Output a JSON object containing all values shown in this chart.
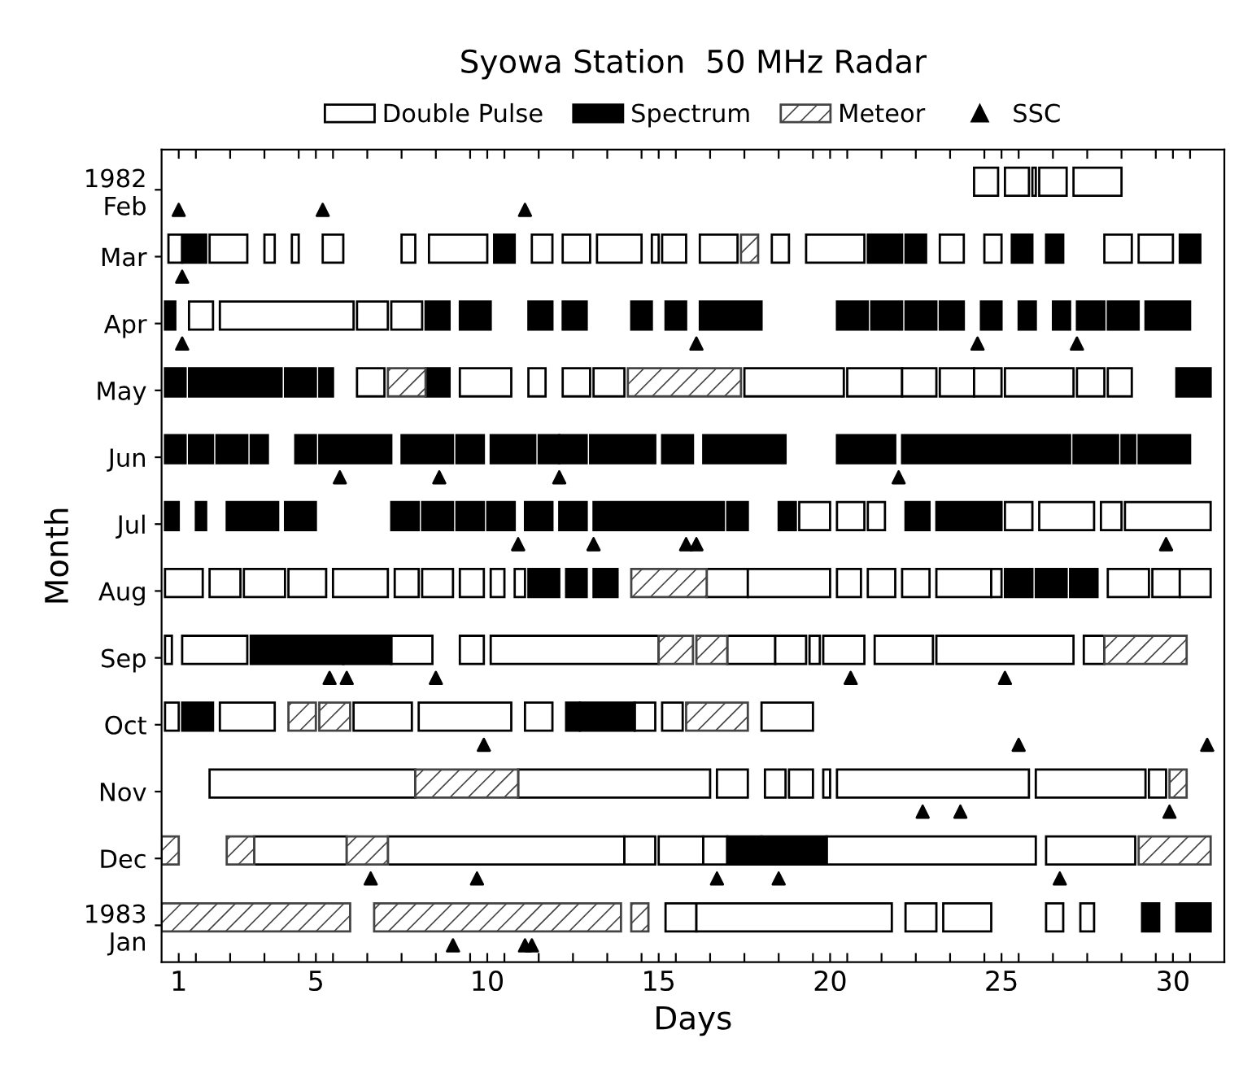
{
  "chart_data": {
    "type": "bar",
    "orientation": "horizontal",
    "title": "Syowa Station  50 MHz Radar",
    "xlabel": "Days",
    "ylabel": "Month",
    "categories": [
      "1982\nFeb",
      "Mar",
      "Apr",
      "May",
      "Jun",
      "Jul",
      "Aug",
      "Sep",
      "Oct",
      "Nov",
      "Dec",
      "1983\nJan"
    ],
    "xlim": [
      0.5,
      31.5
    ],
    "xticks": [
      1,
      5,
      10,
      15,
      20,
      25,
      30,
      {
        "value": 1.5,
        "label": null
      },
      {
        "value": 2.5,
        "label": null
      },
      {
        "value": 3.5,
        "label": null
      },
      {
        "value": 4.5,
        "label": null
      },
      {
        "value": 5.5,
        "label": null
      },
      {
        "value": 6.5,
        "label": null
      },
      {
        "value": 7.5,
        "label": null
      },
      {
        "value": 8.5,
        "label": null
      },
      {
        "value": 9.5,
        "label": null
      },
      {
        "value": 10.5,
        "label": null
      },
      {
        "value": 11.5,
        "label": null
      },
      {
        "value": 12.5,
        "label": null
      },
      {
        "value": 13.5,
        "label": null
      },
      {
        "value": 14.5,
        "label": null
      },
      {
        "value": 15.5,
        "label": null
      },
      {
        "value": 16.5,
        "label": null
      },
      {
        "value": 17.5,
        "label": null
      },
      {
        "value": 18.5,
        "label": null
      },
      {
        "value": 19.5,
        "label": null
      },
      {
        "value": 20.5,
        "label": null
      },
      {
        "value": 21.5,
        "label": null
      },
      {
        "value": 22.5,
        "label": null
      },
      {
        "value": 23.5,
        "label": null
      },
      {
        "value": 24.5,
        "label": null
      },
      {
        "value": 25.5,
        "label": null
      },
      {
        "value": 26.5,
        "label": null
      },
      {
        "value": 27.5,
        "label": null
      },
      {
        "value": 28.5,
        "label": null
      },
      {
        "value": 29.5,
        "label": null
      },
      {
        "value": 30.5,
        "label": null
      }
    ],
    "legend": "top",
    "series": [
      {
        "name": "Double Pulse",
        "color": "#ffffff",
        "base": [
          24.2,
          0.7,
          1.3,
          6.2,
          null,
          19.1,
          0.6,
          0.6,
          0.6,
          1.9,
          3.2,
          15.2
        ],
        "values": [
          0.7,
          0.4,
          0.7,
          0.8,
          null,
          0.9,
          1.1,
          0.2,
          0.4,
          6.0,
          2.7,
          0.9
        ]
      },
      {
        "color": "#ffffff",
        "base": [
          25.1,
          1.9,
          2.2,
          9.2,
          null,
          20.2,
          1.9,
          1.1,
          2.2,
          10.9,
          7.1,
          16.1
        ],
        "values": [
          0.7,
          1.1,
          3.9,
          1.5,
          null,
          0.8,
          0.9,
          1.9,
          1.6,
          5.6,
          6.9,
          5.7
        ]
      },
      {
        "color": "#ffffff",
        "base": [
          25.9,
          3.5,
          6.2,
          11.2,
          null,
          21.1,
          2.9,
          7.2,
          6.1,
          16.7,
          14.0,
          22.2
        ],
        "values": [
          0.1,
          0.3,
          0.9,
          0.5,
          null,
          0.5,
          1.2,
          1.2,
          1.7,
          0.9,
          0.9,
          0.9
        ]
      },
      {
        "color": "#ffffff",
        "base": [
          26.1,
          4.3,
          7.2,
          12.2,
          null,
          25.1,
          4.2,
          9.2,
          8.0,
          18.1,
          15.0,
          23.3
        ],
        "values": [
          0.8,
          0.2,
          0.9,
          0.8,
          null,
          0.8,
          1.1,
          0.7,
          2.7,
          0.6,
          1.3,
          1.4
        ]
      },
      {
        "color": "#ffffff",
        "base": [
          27.1,
          5.2,
          null,
          13.1,
          null,
          26.1,
          5.5,
          10.1,
          11.1,
          18.8,
          16.3,
          26.3
        ],
        "values": [
          1.4,
          0.6,
          null,
          0.9,
          null,
          1.6,
          1.6,
          4.9,
          0.8,
          0.7,
          0.7,
          0.5
        ]
      },
      {
        "color": "#ffffff",
        "base": [
          null,
          7.5,
          null,
          17.5,
          null,
          27.9,
          7.3,
          17.0,
          14.3,
          19.8,
          19.9,
          27.3
        ],
        "values": [
          null,
          0.4,
          null,
          2.9,
          null,
          0.6,
          0.7,
          1.4,
          0.6,
          0.2,
          6.1,
          0.4
        ]
      },
      {
        "color": "#ffffff",
        "base": [
          null,
          8.3,
          null,
          20.5,
          null,
          28.6,
          8.1,
          18.4,
          15.1,
          20.2,
          26.3,
          null
        ],
        "values": [
          null,
          1.7,
          null,
          1.6,
          null,
          2.5,
          0.9,
          0.9,
          0.6,
          5.6,
          2.6,
          null
        ]
      },
      {
        "color": "#ffffff",
        "base": [
          null,
          11.3,
          null,
          22.1,
          null,
          null,
          9.2,
          19.4,
          18.0,
          26.0,
          null,
          null
        ],
        "values": [
          null,
          0.6,
          null,
          1.0,
          null,
          null,
          0.7,
          0.3,
          1.5,
          3.2,
          null,
          null
        ]
      },
      {
        "color": "#ffffff",
        "base": [
          null,
          12.2,
          null,
          23.2,
          null,
          null,
          10.1,
          19.8,
          null,
          29.3,
          null,
          null
        ],
        "values": [
          null,
          0.8,
          null,
          1.0,
          null,
          null,
          0.4,
          1.2,
          null,
          0.5,
          null,
          null
        ]
      },
      {
        "color": "#ffffff",
        "base": [
          null,
          13.2,
          null,
          24.2,
          null,
          null,
          10.8,
          21.3,
          null,
          null,
          null,
          null
        ],
        "values": [
          null,
          1.3,
          null,
          0.8,
          null,
          null,
          0.3,
          1.7,
          null,
          null,
          null,
          null
        ]
      },
      {
        "color": "#ffffff",
        "base": [
          null,
          14.8,
          null,
          25.1,
          null,
          null,
          16.4,
          23.1,
          null,
          null,
          null,
          null
        ],
        "values": [
          null,
          0.2,
          null,
          2.0,
          null,
          null,
          1.2,
          4.0,
          null,
          null,
          null,
          null
        ]
      },
      {
        "color": "#ffffff",
        "base": [
          null,
          15.1,
          null,
          27.2,
          null,
          null,
          17.6,
          27.4,
          null,
          null,
          null,
          null
        ],
        "values": [
          null,
          0.7,
          null,
          0.8,
          null,
          null,
          2.4,
          0.6,
          null,
          null,
          null,
          null
        ]
      },
      {
        "color": "#ffffff",
        "base": [
          null,
          16.2,
          null,
          28.1,
          null,
          null,
          20.2,
          null,
          null,
          null,
          null,
          null
        ],
        "values": [
          null,
          1.1,
          null,
          0.7,
          null,
          null,
          0.7,
          null,
          null,
          null,
          null,
          null
        ]
      },
      {
        "color": "#ffffff",
        "base": [
          null,
          18.3,
          null,
          null,
          null,
          null,
          21.1,
          null,
          null,
          null,
          null,
          null
        ],
        "values": [
          null,
          0.5,
          null,
          null,
          null,
          null,
          0.8,
          null,
          null,
          null,
          null,
          null
        ]
      },
      {
        "color": "#ffffff",
        "base": [
          null,
          19.3,
          null,
          null,
          null,
          null,
          22.1,
          null,
          null,
          null,
          null,
          null
        ],
        "values": [
          null,
          1.7,
          null,
          null,
          null,
          null,
          0.8,
          null,
          null,
          null,
          null,
          null
        ]
      },
      {
        "color": "#ffffff",
        "base": [
          null,
          23.2,
          null,
          null,
          null,
          null,
          23.1,
          null,
          null,
          null,
          null,
          null
        ],
        "values": [
          null,
          0.7,
          null,
          null,
          null,
          null,
          1.6,
          null,
          null,
          null,
          null,
          null
        ]
      },
      {
        "color": "#ffffff",
        "base": [
          null,
          24.5,
          null,
          null,
          null,
          null,
          24.7,
          null,
          null,
          null,
          null,
          null
        ],
        "values": [
          null,
          0.5,
          null,
          null,
          null,
          null,
          0.3,
          null,
          null,
          null,
          null,
          null
        ]
      },
      {
        "color": "#ffffff",
        "base": [
          null,
          28.0,
          null,
          null,
          null,
          null,
          28.1,
          null,
          null,
          null,
          null,
          null
        ],
        "values": [
          null,
          0.8,
          null,
          null,
          null,
          null,
          1.2,
          null,
          null,
          null,
          null,
          null
        ]
      },
      {
        "color": "#ffffff",
        "base": [
          null,
          29.0,
          null,
          null,
          null,
          null,
          29.4,
          null,
          null,
          null,
          null,
          null
        ],
        "values": [
          null,
          1.0,
          null,
          null,
          null,
          null,
          0.8,
          null,
          null,
          null,
          null,
          null
        ]
      },
      {
        "color": "#ffffff",
        "base": [
          null,
          null,
          null,
          null,
          null,
          null,
          30.2,
          null,
          null,
          null,
          null,
          null
        ],
        "values": [
          null,
          null,
          null,
          null,
          null,
          null,
          0.9,
          null,
          null,
          null,
          null,
          null
        ]
      },
      {
        "name": "Spectrum",
        "color": "#000000",
        "base": [
          null,
          1.1,
          0.6,
          0.6,
          0.6,
          0.6,
          11.2,
          3.1,
          1.1,
          null,
          17.0,
          29.1
        ],
        "values": [
          null,
          0.7,
          0.3,
          0.6,
          0.6,
          0.4,
          0.9,
          2.7,
          0.9,
          null,
          1.0,
          0.5
        ]
      },
      {
        "color": "#000000",
        "base": [
          null,
          10.2,
          8.2,
          1.3,
          1.3,
          1.5,
          12.3,
          5.8,
          12.3,
          null,
          18.0,
          30.1
        ],
        "values": [
          null,
          0.6,
          0.7,
          2.7,
          0.7,
          0.3,
          0.6,
          1.4,
          0.4,
          null,
          1.9,
          1.0
        ]
      },
      {
        "color": "#000000",
        "base": [
          null,
          21.1,
          9.2,
          4.1,
          2.1,
          2.4,
          13.1,
          null,
          12.7,
          null,
          null,
          null
        ],
        "values": [
          null,
          1.0,
          0.9,
          0.9,
          0.9,
          1.5,
          0.7,
          null,
          1.6,
          null,
          null,
          null
        ]
      },
      {
        "color": "#000000",
        "base": [
          null,
          22.2,
          11.2,
          5.1,
          3.1,
          4.1,
          25.1,
          null,
          null,
          null,
          null,
          null
        ],
        "values": [
          null,
          0.6,
          0.7,
          0.4,
          0.5,
          0.9,
          0.8,
          null,
          null,
          null,
          null,
          null
        ]
      },
      {
        "color": "#000000",
        "base": [
          null,
          25.3,
          12.2,
          8.2,
          4.4,
          7.2,
          26.0,
          null,
          null,
          null,
          null,
          null
        ],
        "values": [
          null,
          0.6,
          0.7,
          0.7,
          0.6,
          0.8,
          0.9,
          null,
          null,
          null,
          null,
          null
        ]
      },
      {
        "color": "#000000",
        "base": [
          null,
          26.3,
          14.2,
          30.1,
          5.1,
          8.1,
          27.0,
          null,
          null,
          null,
          null,
          null
        ],
        "values": [
          null,
          0.5,
          0.6,
          1.0,
          2.1,
          0.9,
          0.8,
          null,
          null,
          null,
          null,
          null
        ]
      },
      {
        "color": "#000000",
        "base": [
          null,
          30.2,
          15.2,
          null,
          7.5,
          9.1,
          null,
          null,
          null,
          null,
          null,
          null
        ],
        "values": [
          null,
          0.6,
          0.6,
          null,
          1.5,
          0.8,
          null,
          null,
          null,
          null,
          null,
          null
        ]
      },
      {
        "color": "#000000",
        "base": [
          null,
          null,
          16.2,
          null,
          9.1,
          10.0,
          null,
          null,
          null,
          null,
          null,
          null
        ],
        "values": [
          null,
          null,
          1.8,
          null,
          0.8,
          0.8,
          null,
          null,
          null,
          null,
          null,
          null
        ]
      },
      {
        "color": "#000000",
        "base": [
          null,
          null,
          20.2,
          null,
          10.1,
          11.1,
          null,
          null,
          null,
          null,
          null,
          null
        ],
        "values": [
          null,
          null,
          0.9,
          null,
          1.3,
          0.8,
          null,
          null,
          null,
          null,
          null,
          null
        ]
      },
      {
        "color": "#000000",
        "base": [
          null,
          null,
          21.2,
          null,
          11.5,
          12.1,
          null,
          null,
          null,
          null,
          null,
          null
        ],
        "values": [
          null,
          null,
          0.9,
          null,
          0.6,
          0.8,
          null,
          null,
          null,
          null,
          null,
          null
        ]
      },
      {
        "color": "#000000",
        "base": [
          null,
          null,
          22.2,
          null,
          12.1,
          13.1,
          null,
          null,
          null,
          null,
          null,
          null
        ],
        "values": [
          null,
          null,
          0.9,
          null,
          0.8,
          3.8,
          null,
          null,
          null,
          null,
          null,
          null
        ]
      },
      {
        "color": "#000000",
        "base": [
          null,
          null,
          23.2,
          null,
          13.0,
          17.0,
          null,
          null,
          null,
          null,
          null,
          null
        ],
        "values": [
          null,
          null,
          0.7,
          null,
          1.9,
          0.6,
          null,
          null,
          null,
          null,
          null,
          null
        ]
      },
      {
        "color": "#000000",
        "base": [
          null,
          null,
          24.4,
          null,
          15.1,
          18.5,
          null,
          null,
          null,
          null,
          null,
          null
        ],
        "values": [
          null,
          null,
          0.6,
          null,
          0.9,
          0.5,
          null,
          null,
          null,
          null,
          null,
          null
        ]
      },
      {
        "color": "#000000",
        "base": [
          null,
          null,
          25.5,
          null,
          16.3,
          22.2,
          null,
          null,
          null,
          null,
          null,
          null
        ],
        "values": [
          null,
          null,
          0.5,
          null,
          2.4,
          0.7,
          null,
          null,
          null,
          null,
          null,
          null
        ]
      },
      {
        "color": "#000000",
        "base": [
          null,
          null,
          26.5,
          null,
          20.2,
          23.1,
          null,
          null,
          null,
          null,
          null,
          null
        ],
        "values": [
          null,
          null,
          0.5,
          null,
          1.7,
          1.9,
          null,
          null,
          null,
          null,
          null,
          null
        ]
      },
      {
        "color": "#000000",
        "base": [
          null,
          null,
          27.2,
          null,
          22.1,
          null,
          null,
          null,
          null,
          null,
          null,
          null
        ],
        "values": [
          null,
          null,
          0.8,
          null,
          4.9,
          null,
          null,
          null,
          null,
          null,
          null,
          null
        ]
      },
      {
        "color": "#000000",
        "base": [
          null,
          null,
          28.1,
          null,
          27.1,
          null,
          null,
          null,
          null,
          null,
          null,
          null
        ],
        "values": [
          null,
          null,
          0.9,
          null,
          1.3,
          null,
          null,
          null,
          null,
          null,
          null,
          null
        ]
      },
      {
        "color": "#000000",
        "base": [
          null,
          null,
          29.2,
          null,
          28.5,
          null,
          null,
          null,
          null,
          null,
          null,
          null
        ],
        "values": [
          null,
          null,
          1.3,
          null,
          0.4,
          null,
          null,
          null,
          null,
          null,
          null,
          null
        ]
      },
      {
        "color": "#000000",
        "base": [
          null,
          null,
          null,
          null,
          29.0,
          null,
          null,
          null,
          null,
          null,
          null,
          null
        ],
        "values": [
          null,
          null,
          null,
          null,
          1.5,
          null,
          null,
          null,
          null,
          null,
          null,
          null
        ]
      },
      {
        "name": "Meteor",
        "color": "#444444",
        "base": [
          null,
          17.4,
          null,
          7.1,
          null,
          null,
          14.2,
          15.0,
          4.2,
          7.9,
          0.5,
          0.5
        ],
        "values": [
          null,
          0.5,
          null,
          1.1,
          null,
          null,
          2.2,
          1.0,
          0.8,
          3.0,
          0.5,
          5.5
        ]
      },
      {
        "color": "#444444",
        "base": [
          null,
          null,
          null,
          14.1,
          null,
          null,
          null,
          16.1,
          5.1,
          29.9,
          2.4,
          6.7
        ],
        "values": [
          null,
          null,
          null,
          3.3,
          null,
          null,
          null,
          0.9,
          0.9,
          0.5,
          0.8,
          7.2
        ]
      },
      {
        "color": "#444444",
        "base": [
          null,
          null,
          null,
          null,
          null,
          null,
          null,
          28.0,
          15.8,
          null,
          5.9,
          14.2
        ],
        "values": [
          null,
          null,
          null,
          null,
          null,
          null,
          null,
          2.4,
          1.8,
          null,
          1.2,
          0.5
        ]
      },
      {
        "color": "#444444",
        "base": [
          null,
          null,
          null,
          null,
          null,
          null,
          null,
          null,
          null,
          null,
          29.0,
          null
        ],
        "values": [
          null,
          null,
          null,
          null,
          null,
          null,
          null,
          null,
          null,
          null,
          2.1,
          null
        ]
      },
      {
        "name": "SSC",
        "type": "scatter",
        "marker": "triangle",
        "color": "#000000",
        "x": [
          "1982\nFeb",
          "1982\nFeb",
          "1982\nFeb",
          "Mar",
          "Apr",
          "Apr",
          "Apr",
          "Apr",
          "Jun",
          "Jun",
          "Jun",
          "Jun",
          "Jul",
          "Jul",
          "Jul",
          "Jul",
          "Jul",
          "Sep",
          "Sep",
          "Sep",
          "Sep",
          "Sep",
          "Oct",
          "Oct",
          "Oct",
          "Nov",
          "Nov",
          "Nov",
          "Dec",
          "Dec",
          "Dec",
          "Dec",
          "Dec",
          "1983\nJan",
          "1983\nJan",
          "1983\nJan"
        ],
        "values": [
          1.0,
          5.2,
          11.1,
          1.1,
          1.1,
          16.1,
          24.3,
          27.2,
          5.7,
          8.6,
          12.1,
          22.0,
          10.9,
          13.1,
          15.8,
          16.1,
          29.8,
          5.4,
          5.9,
          8.5,
          20.6,
          25.1,
          9.9,
          25.5,
          31.0,
          22.7,
          23.8,
          29.9,
          6.6,
          9.7,
          16.7,
          18.5,
          26.7,
          9.0,
          11.1,
          11.3
        ]
      }
    ]
  }
}
